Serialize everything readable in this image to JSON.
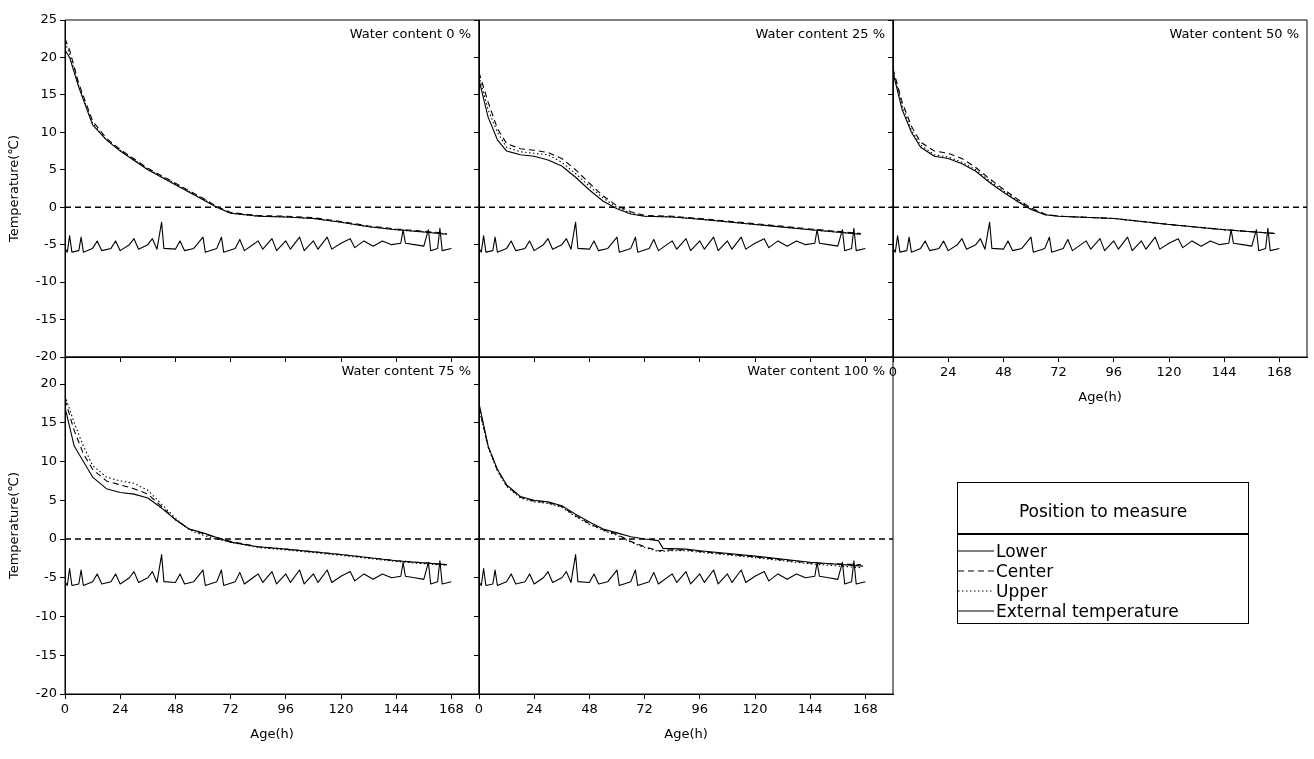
{
  "chart_data": [
    {
      "type": "line",
      "annotations": [
        "Water content 0 %"
      ],
      "legend": "right",
      "legend_title": "Position to measure",
      "ylabel": "Temperature(℃)",
      "xlim": [
        0,
        180
      ],
      "ylim": [
        -20,
        25
      ],
      "xticks": [
        0,
        24,
        48,
        72,
        96,
        120,
        144,
        168
      ],
      "yticks": [
        -20,
        -15,
        -10,
        -5,
        0,
        5,
        10,
        15,
        20,
        25
      ],
      "tick_labels": "y",
      "ref_lines": [
        {
          "axis": "y",
          "value": 0,
          "color": "#000000",
          "line_style": "dashed"
        }
      ],
      "series": [
        {
          "name": "Lower",
          "color": "#000000",
          "line_style": "solid",
          "x": [
            0,
            2,
            6,
            12,
            18,
            24,
            36,
            48,
            60,
            66,
            72,
            84,
            96,
            108,
            120,
            132,
            144,
            156,
            166
          ],
          "values": [
            21,
            20,
            16,
            11,
            9,
            7.5,
            5,
            3,
            1,
            0,
            -0.8,
            -1.2,
            -1.3,
            -1.5,
            -2,
            -2.6,
            -3,
            -3.3,
            -3.6
          ]
        },
        {
          "name": "Center",
          "color": "#000000",
          "line_style": "dashed",
          "x": [
            0,
            2,
            6,
            12,
            18,
            24,
            36,
            48,
            60,
            66,
            72,
            84,
            96,
            108,
            120,
            132,
            144,
            156,
            166
          ],
          "values": [
            22.5,
            21,
            16.5,
            11.5,
            9.2,
            7.7,
            5.2,
            3.2,
            1.2,
            0.1,
            -0.7,
            -1.1,
            -1.2,
            -1.4,
            -1.9,
            -2.5,
            -2.9,
            -3.2,
            -3.5
          ]
        },
        {
          "name": "Upper",
          "color": "#000000",
          "line_style": "dotted",
          "x": [
            0,
            2,
            6,
            12,
            18,
            24,
            36,
            48,
            60,
            66,
            72,
            84,
            96,
            108,
            120,
            132,
            144,
            156,
            166
          ],
          "values": [
            22,
            20.5,
            16.2,
            11.2,
            9,
            7.6,
            5.1,
            3.1,
            1.1,
            0,
            -0.8,
            -1.2,
            -1.3,
            -1.5,
            -2,
            -2.6,
            -3,
            -3.3,
            -3.6
          ]
        },
        {
          "name": "External temperature",
          "color": "#000000",
          "line_style": "solid",
          "x": [
            0,
            1,
            2,
            3,
            6,
            7,
            8,
            12,
            14,
            16,
            20,
            22,
            24,
            28,
            30,
            32,
            36,
            38,
            40,
            42,
            43,
            48,
            50,
            52,
            56,
            60,
            61,
            66,
            68,
            69,
            74,
            76,
            78,
            84,
            86,
            90,
            92,
            96,
            98,
            102,
            104,
            108,
            110,
            114,
            116,
            120,
            124,
            126,
            130,
            134,
            138,
            142,
            146,
            147,
            148,
            152,
            156,
            158,
            159,
            162,
            163,
            164,
            168
          ],
          "values": [
            -5.5,
            -6,
            -3.8,
            -6,
            -5.8,
            -4,
            -6,
            -5.5,
            -4.5,
            -5.8,
            -5.5,
            -4.5,
            -5.8,
            -5,
            -4.2,
            -5.6,
            -5,
            -4.2,
            -5.6,
            -2,
            -5.5,
            -5.6,
            -4.5,
            -5.8,
            -5.5,
            -4,
            -6,
            -5.5,
            -4,
            -6,
            -5.5,
            -4.3,
            -5.8,
            -4.5,
            -5.6,
            -4.2,
            -5.8,
            -4.5,
            -5.6,
            -4,
            -5.8,
            -4.5,
            -5.6,
            -4,
            -5.6,
            -4.8,
            -4.2,
            -5.4,
            -4.5,
            -5.2,
            -4.5,
            -5,
            -4.8,
            -3,
            -4.8,
            -5,
            -5.2,
            -3,
            -5.8,
            -5.5,
            -2.8,
            -5.8,
            -5.5
          ]
        }
      ]
    },
    {
      "type": "line",
      "annotations": [
        "Water content 25 %"
      ],
      "xlim": [
        0,
        180
      ],
      "ylim": [
        -20,
        25
      ],
      "xticks": [
        0,
        24,
        48,
        72,
        96,
        120,
        144,
        168
      ],
      "yticks": [
        -20,
        -15,
        -10,
        -5,
        0,
        5,
        10,
        15,
        20,
        25
      ],
      "tick_labels": false,
      "ref_lines": [
        {
          "axis": "y",
          "value": 0,
          "color": "#000000",
          "line_style": "dashed"
        }
      ],
      "series": [
        {
          "color": "#000000",
          "line_style": "solid",
          "x": [
            0,
            4,
            8,
            12,
            18,
            24,
            30,
            36,
            42,
            48,
            54,
            60,
            66,
            72,
            84,
            96,
            120,
            144,
            166
          ],
          "values": [
            17,
            12,
            9,
            7.5,
            7,
            6.8,
            6.3,
            5.5,
            4,
            2.3,
            0.8,
            -0.2,
            -0.9,
            -1.2,
            -1.3,
            -1.6,
            -2.3,
            -3,
            -3.6
          ]
        },
        {
          "color": "#000000",
          "line_style": "dashed",
          "x": [
            0,
            4,
            8,
            12,
            18,
            24,
            30,
            36,
            42,
            48,
            54,
            60,
            66,
            72,
            84,
            96,
            120,
            144,
            166
          ],
          "values": [
            18,
            14,
            10.5,
            8.5,
            7.8,
            7.6,
            7.3,
            6.5,
            5,
            3.2,
            1.5,
            0.2,
            -0.6,
            -1.1,
            -1.2,
            -1.5,
            -2.2,
            -2.9,
            -3.5
          ]
        },
        {
          "color": "#000000",
          "line_style": "dotted",
          "x": [
            0,
            4,
            8,
            12,
            18,
            24,
            30,
            36,
            42,
            48,
            54,
            60,
            66,
            72,
            84,
            96,
            120,
            144,
            166
          ],
          "values": [
            17.5,
            13,
            10,
            8,
            7.4,
            7.2,
            7,
            6,
            4.5,
            2.8,
            1.2,
            0,
            -0.8,
            -1.2,
            -1.3,
            -1.6,
            -2.3,
            -3,
            -3.6
          ]
        },
        {
          "color": "#000000",
          "line_style": "solid",
          "x": [
            0,
            1,
            2,
            3,
            6,
            7,
            8,
            12,
            14,
            16,
            20,
            22,
            24,
            28,
            30,
            32,
            36,
            38,
            40,
            42,
            43,
            48,
            50,
            52,
            56,
            60,
            61,
            66,
            68,
            69,
            74,
            76,
            78,
            84,
            86,
            90,
            92,
            96,
            98,
            102,
            104,
            108,
            110,
            114,
            116,
            120,
            124,
            126,
            130,
            134,
            138,
            142,
            146,
            147,
            148,
            152,
            156,
            158,
            159,
            162,
            163,
            164,
            168
          ],
          "values": [
            -5.5,
            -6,
            -3.8,
            -6,
            -5.8,
            -4,
            -6,
            -5.5,
            -4.5,
            -5.8,
            -5.5,
            -4.5,
            -5.8,
            -5,
            -4.2,
            -5.6,
            -5,
            -4.2,
            -5.6,
            -2,
            -5.5,
            -5.6,
            -4.5,
            -5.8,
            -5.5,
            -4,
            -6,
            -5.5,
            -4,
            -6,
            -5.5,
            -4.3,
            -5.8,
            -4.5,
            -5.6,
            -4.2,
            -5.8,
            -4.5,
            -5.6,
            -4,
            -5.8,
            -4.5,
            -5.6,
            -4,
            -5.6,
            -4.8,
            -4.2,
            -5.4,
            -4.5,
            -5.2,
            -4.5,
            -5,
            -4.8,
            -3,
            -4.8,
            -5,
            -5.2,
            -3,
            -5.8,
            -5.5,
            -2.8,
            -5.8,
            -5.5
          ]
        }
      ]
    },
    {
      "type": "line",
      "annotations": [
        "Water content 50 %"
      ],
      "xlabel": "Age(h)",
      "xlim": [
        0,
        180
      ],
      "ylim": [
        -20,
        25
      ],
      "xticks": [
        0,
        24,
        48,
        72,
        96,
        120,
        144,
        168
      ],
      "yticks": [
        -20,
        -15,
        -10,
        -5,
        0,
        5,
        10,
        15,
        20,
        25
      ],
      "tick_labels": "x",
      "ref_lines": [
        {
          "axis": "y",
          "value": 0,
          "color": "#000000",
          "line_style": "dashed"
        }
      ],
      "series": [
        {
          "color": "#000000",
          "line_style": "solid",
          "x": [
            0,
            4,
            8,
            12,
            18,
            24,
            30,
            36,
            42,
            48,
            54,
            60,
            66,
            72,
            96,
            120,
            144,
            166
          ],
          "values": [
            18,
            13,
            10,
            8,
            6.8,
            6.5,
            5.8,
            4.8,
            3.3,
            2,
            0.8,
            -0.3,
            -1,
            -1.2,
            -1.5,
            -2.3,
            -3,
            -3.5
          ]
        },
        {
          "color": "#000000",
          "line_style": "dashed",
          "x": [
            0,
            4,
            8,
            12,
            18,
            24,
            30,
            36,
            42,
            48,
            54,
            60,
            66,
            72,
            96,
            120,
            144,
            166
          ],
          "values": [
            18.5,
            14,
            10.8,
            8.7,
            7.5,
            7.2,
            6.5,
            5.3,
            3.8,
            2.4,
            1.1,
            -0.1,
            -0.9,
            -1.2,
            -1.5,
            -2.3,
            -3,
            -3.5
          ]
        },
        {
          "color": "#000000",
          "line_style": "dotted",
          "x": [
            0,
            4,
            8,
            12,
            18,
            24,
            30,
            36,
            42,
            48,
            54,
            60,
            66,
            72,
            96,
            120,
            144,
            166
          ],
          "values": [
            18.2,
            13.5,
            10.3,
            8.3,
            7,
            6.7,
            6,
            5,
            3.5,
            2.2,
            0.9,
            -0.2,
            -1,
            -1.2,
            -1.5,
            -2.3,
            -3,
            -3.5
          ]
        },
        {
          "color": "#000000",
          "line_style": "solid",
          "x": [
            0,
            1,
            2,
            3,
            6,
            7,
            8,
            12,
            14,
            16,
            20,
            22,
            24,
            28,
            30,
            32,
            36,
            38,
            40,
            42,
            43,
            48,
            50,
            52,
            56,
            60,
            61,
            66,
            68,
            69,
            74,
            76,
            78,
            84,
            86,
            90,
            92,
            96,
            98,
            102,
            104,
            108,
            110,
            114,
            116,
            120,
            124,
            126,
            130,
            134,
            138,
            142,
            146,
            147,
            148,
            152,
            156,
            158,
            159,
            162,
            163,
            164,
            168
          ],
          "values": [
            -5.5,
            -6,
            -3.8,
            -6,
            -5.8,
            -4,
            -6,
            -5.5,
            -4.5,
            -5.8,
            -5.5,
            -4.5,
            -5.8,
            -5,
            -4.2,
            -5.6,
            -5,
            -4.2,
            -5.6,
            -2,
            -5.5,
            -5.6,
            -4.5,
            -5.8,
            -5.5,
            -4,
            -6,
            -5.5,
            -4,
            -6,
            -5.5,
            -4.3,
            -5.8,
            -4.5,
            -5.6,
            -4.2,
            -5.8,
            -4.5,
            -5.6,
            -4,
            -5.8,
            -4.5,
            -5.6,
            -4,
            -5.6,
            -4.8,
            -4.2,
            -5.4,
            -4.5,
            -5.2,
            -4.5,
            -5,
            -4.8,
            -3,
            -4.8,
            -5,
            -5.2,
            -3,
            -5.8,
            -5.5,
            -2.8,
            -5.8,
            -5.5
          ]
        }
      ]
    },
    {
      "type": "line",
      "annotations": [
        "Water content 75 %"
      ],
      "xlabel": "Age(h)",
      "ylabel": "Temperature(℃)",
      "xlim": [
        0,
        180
      ],
      "ylim": [
        -20,
        23.5
      ],
      "xticks": [
        0,
        24,
        48,
        72,
        96,
        120,
        144,
        168
      ],
      "yticks": [
        -20,
        -15,
        -10,
        -5,
        0,
        5,
        10,
        15,
        20
      ],
      "ref_lines": [
        {
          "axis": "y",
          "value": 0,
          "color": "#000000",
          "line_style": "dashed"
        }
      ],
      "series": [
        {
          "color": "#000000",
          "line_style": "solid",
          "x": [
            0,
            4,
            8,
            12,
            18,
            24,
            30,
            36,
            42,
            48,
            54,
            60,
            66,
            72,
            84,
            96,
            120,
            144,
            166
          ],
          "values": [
            17,
            12,
            10,
            8,
            6.5,
            6,
            5.8,
            5.3,
            4,
            2.5,
            1.3,
            0.8,
            0.2,
            -0.4,
            -1,
            -1.3,
            -2,
            -2.8,
            -3.3
          ]
        },
        {
          "color": "#000000",
          "line_style": "dashed",
          "x": [
            0,
            4,
            8,
            12,
            18,
            24,
            30,
            36,
            42,
            48,
            54,
            60,
            66,
            72,
            84,
            96,
            120,
            144,
            166
          ],
          "values": [
            18,
            14,
            11,
            9,
            7.5,
            7,
            6.5,
            5.8,
            4.2,
            2.5,
            1.3,
            0.7,
            0.2,
            -0.3,
            -1,
            -1.3,
            -2,
            -2.8,
            -3.3
          ]
        },
        {
          "color": "#000000",
          "line_style": "dotted",
          "x": [
            0,
            4,
            8,
            12,
            18,
            24,
            30,
            36,
            42,
            48,
            54,
            60,
            66,
            72,
            84,
            96,
            120,
            144,
            166
          ],
          "values": [
            18.5,
            15,
            12,
            9.5,
            8,
            7.5,
            7.2,
            6.3,
            4.5,
            2.7,
            1.2,
            0.5,
            0,
            -0.4,
            -1.1,
            -1.4,
            -2.1,
            -2.9,
            -3.4
          ]
        },
        {
          "color": "#000000",
          "line_style": "solid",
          "x": [
            0,
            1,
            2,
            3,
            6,
            7,
            8,
            12,
            14,
            16,
            20,
            22,
            24,
            28,
            30,
            32,
            36,
            38,
            40,
            42,
            43,
            48,
            50,
            52,
            56,
            60,
            61,
            66,
            68,
            69,
            74,
            76,
            78,
            84,
            86,
            90,
            92,
            96,
            98,
            102,
            104,
            108,
            110,
            114,
            116,
            120,
            124,
            126,
            130,
            134,
            138,
            142,
            146,
            147,
            148,
            152,
            156,
            158,
            159,
            162,
            163,
            164,
            168
          ],
          "values": [
            -5.5,
            -6,
            -3.8,
            -6,
            -5.8,
            -4,
            -6,
            -5.5,
            -4.5,
            -5.8,
            -5.5,
            -4.5,
            -5.8,
            -5,
            -4.2,
            -5.6,
            -5,
            -4.2,
            -5.6,
            -2,
            -5.5,
            -5.6,
            -4.5,
            -5.8,
            -5.5,
            -4,
            -6,
            -5.5,
            -4,
            -6,
            -5.5,
            -4.3,
            -5.8,
            -4.5,
            -5.6,
            -4.2,
            -5.8,
            -4.5,
            -5.6,
            -4,
            -5.8,
            -4.5,
            -5.6,
            -4,
            -5.6,
            -4.8,
            -4.2,
            -5.4,
            -4.5,
            -5.2,
            -4.5,
            -5,
            -4.8,
            -3,
            -4.8,
            -5,
            -5.2,
            -3,
            -5.8,
            -5.5,
            -2.8,
            -5.8,
            -5.5
          ]
        }
      ]
    },
    {
      "type": "line",
      "annotations": [
        "Water content 100 %"
      ],
      "xlabel": "Age(h)",
      "xlim": [
        0,
        180
      ],
      "ylim": [
        -20,
        23.5
      ],
      "xticks": [
        0,
        24,
        48,
        72,
        96,
        120,
        144,
        168
      ],
      "yticks": [
        -20,
        -15,
        -10,
        -5,
        0,
        5,
        10,
        15,
        20
      ],
      "tick_labels": "x",
      "ref_lines": [
        {
          "axis": "y",
          "value": 0,
          "color": "#000000",
          "line_style": "dashed"
        }
      ],
      "series": [
        {
          "color": "#000000",
          "line_style": "solid",
          "x": [
            0,
            4,
            8,
            12,
            18,
            24,
            30,
            36,
            42,
            48,
            54,
            60,
            66,
            72,
            78,
            80,
            90,
            96,
            120,
            144,
            167
          ],
          "values": [
            17.5,
            12,
            9,
            7,
            5.5,
            5,
            4.8,
            4.3,
            3.2,
            2.2,
            1.3,
            0.8,
            0.3,
            0,
            -0.2,
            -1.2,
            -1.3,
            -1.5,
            -2.2,
            -3,
            -3.5
          ]
        },
        {
          "color": "#000000",
          "line_style": "dashed",
          "x": [
            0,
            4,
            8,
            12,
            18,
            24,
            30,
            36,
            42,
            48,
            54,
            60,
            66,
            72,
            78,
            84,
            90,
            96,
            120,
            144,
            166
          ],
          "values": [
            17,
            11.9,
            8.9,
            6.9,
            5.4,
            4.9,
            4.7,
            4.2,
            3,
            2,
            1.2,
            0.6,
            -0.3,
            -1,
            -1.5,
            -1.4,
            -1.4,
            -1.6,
            -2.3,
            -3.1,
            -3.3
          ]
        },
        {
          "color": "#000000",
          "line_style": "dotted",
          "x": [
            0,
            4,
            8,
            12,
            18,
            24,
            30,
            36,
            42,
            48,
            54,
            60,
            66,
            72,
            78,
            84,
            90,
            96,
            120,
            144,
            166
          ],
          "values": [
            16.9,
            11.8,
            8.8,
            6.8,
            5.3,
            4.8,
            4.6,
            4.1,
            2.9,
            1.9,
            1.1,
            0.5,
            -0.4,
            -1.1,
            -1.6,
            -1.5,
            -1.5,
            -1.7,
            -2.4,
            -3.2,
            -3.7
          ]
        },
        {
          "color": "#000000",
          "line_style": "solid",
          "x": [
            0,
            1,
            2,
            3,
            6,
            7,
            8,
            12,
            14,
            16,
            20,
            22,
            24,
            28,
            30,
            32,
            36,
            38,
            40,
            42,
            43,
            48,
            50,
            52,
            56,
            60,
            61,
            66,
            68,
            69,
            74,
            76,
            78,
            84,
            86,
            90,
            92,
            96,
            98,
            102,
            104,
            108,
            110,
            114,
            116,
            120,
            124,
            126,
            130,
            134,
            138,
            142,
            146,
            147,
            148,
            152,
            156,
            158,
            159,
            162,
            163,
            164,
            168
          ],
          "values": [
            -5.5,
            -6,
            -3.8,
            -6,
            -5.8,
            -4,
            -6,
            -5.5,
            -4.5,
            -5.8,
            -5.5,
            -4.5,
            -5.8,
            -5,
            -4.2,
            -5.6,
            -5,
            -4.2,
            -5.6,
            -2,
            -5.5,
            -5.6,
            -4.5,
            -5.8,
            -5.5,
            -4,
            -6,
            -5.5,
            -4,
            -6,
            -5.5,
            -4.3,
            -5.8,
            -4.5,
            -5.6,
            -4.2,
            -5.8,
            -4.5,
            -5.6,
            -4,
            -5.8,
            -4.5,
            -5.6,
            -4,
            -5.6,
            -4.8,
            -4.2,
            -5.4,
            -4.5,
            -5.2,
            -4.5,
            -5,
            -4.8,
            -3,
            -4.8,
            -5,
            -5.2,
            -3,
            -5.8,
            -5.5,
            -2.8,
            -5.8,
            -5.5
          ]
        }
      ]
    }
  ]
}
